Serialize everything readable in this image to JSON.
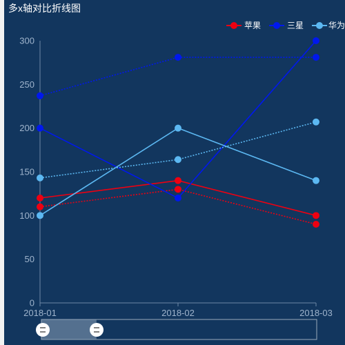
{
  "chart_data": {
    "type": "line",
    "title": "多x轴对比折线图",
    "x": [
      "2018-01",
      "2018-02",
      "2018-03"
    ],
    "ylim": [
      0,
      300
    ],
    "yticks": [
      0,
      50,
      100,
      150,
      200,
      250,
      300
    ],
    "legend": [
      "苹果",
      "三星",
      "华为"
    ],
    "legend_position": "top-right",
    "series": [
      {
        "name": "苹果",
        "color": "#ee0011",
        "style": "solid",
        "values": [
          120,
          140,
          100
        ]
      },
      {
        "name": "苹果",
        "color": "#ee0011",
        "style": "dotted",
        "values": [
          110,
          130,
          90
        ]
      },
      {
        "name": "三星",
        "color": "#0018ee",
        "style": "solid",
        "values": [
          200,
          120,
          300
        ]
      },
      {
        "name": "三星",
        "color": "#0018ee",
        "style": "dotted",
        "values": [
          237,
          281,
          281
        ]
      },
      {
        "name": "华为",
        "color": "#5cb8f2",
        "style": "solid",
        "values": [
          100,
          200,
          140
        ]
      },
      {
        "name": "华为",
        "color": "#5cb8f2",
        "style": "dotted",
        "values": [
          143,
          164,
          207
        ]
      }
    ],
    "grid": false
  },
  "datazoom": {
    "start_percent": 0,
    "end_percent": 20
  }
}
